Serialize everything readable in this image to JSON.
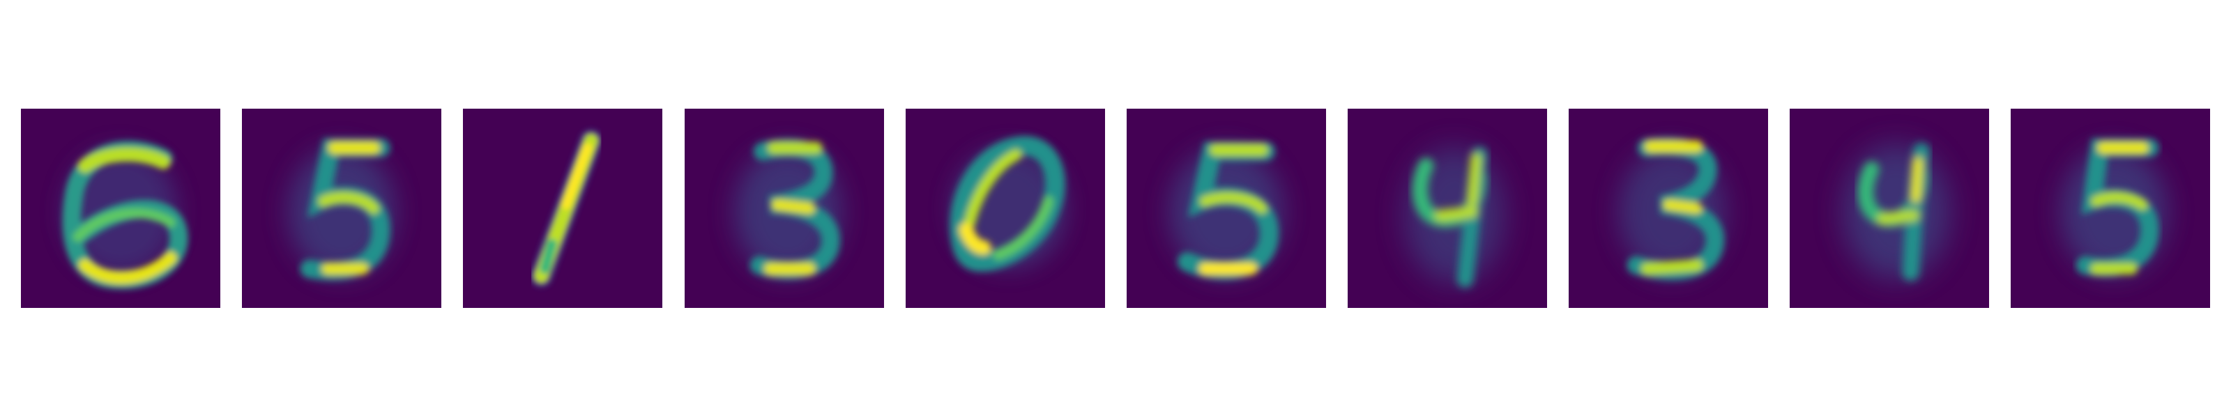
{
  "figure": {
    "background": "#ffffff",
    "colormap": "viridis",
    "panel_background": "#440154",
    "panels": [
      {
        "digit": "6"
      },
      {
        "digit": "5"
      },
      {
        "digit": "1"
      },
      {
        "digit": "3"
      },
      {
        "digit": "0"
      },
      {
        "digit": "5"
      },
      {
        "digit": "4"
      },
      {
        "digit": "3"
      },
      {
        "digit": "4"
      },
      {
        "digit": "5"
      }
    ]
  }
}
